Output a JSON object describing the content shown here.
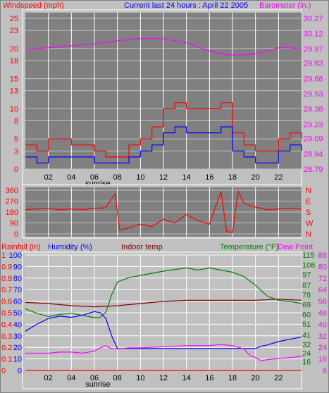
{
  "chart_data": [
    {
      "type": "line",
      "id": "wind-baro",
      "title": "Current last 24 hours : April 22 2005",
      "left_label": "Windspeed (mph)",
      "right_label": "Barometer (in.)",
      "left_ticks": [
        0,
        3,
        5,
        8,
        10,
        13,
        15,
        18,
        20,
        23,
        25
      ],
      "left_range": [
        0,
        25
      ],
      "right_ticks": [
        28.79,
        28.94,
        29.09,
        29.23,
        29.38,
        29.53,
        29.68,
        29.83,
        29.97,
        30.12,
        30.27
      ],
      "right_range": [
        28.79,
        30.27
      ],
      "x_ticks": [
        "02",
        "04",
        "06",
        "08",
        "10",
        "12",
        "14",
        "16",
        "18",
        "20",
        "22"
      ],
      "x_range": [
        0,
        24
      ],
      "annotation": "sunrise",
      "annotation_x": 6.3,
      "barometer": {
        "x": [
          0,
          2,
          4,
          6,
          8,
          10,
          12,
          14,
          16,
          17,
          18,
          19,
          20,
          21,
          22,
          23,
          24
        ],
        "y": [
          29.97,
          29.98,
          30.0,
          30.02,
          30.05,
          30.07,
          30.07,
          30.03,
          29.95,
          29.92,
          29.91,
          29.91,
          29.92,
          29.95,
          29.98,
          29.98,
          29.97
        ]
      },
      "wind_gust": {
        "x": [
          0,
          1,
          2,
          3,
          4,
          5,
          6,
          7,
          8,
          9,
          10,
          11,
          12,
          13,
          14,
          15,
          16,
          17,
          18,
          19,
          20,
          21,
          22,
          23,
          24
        ],
        "y": [
          4,
          3,
          5,
          5,
          4,
          4,
          3,
          2,
          2,
          4,
          5,
          7,
          10,
          11,
          10,
          10,
          10,
          11,
          6,
          4,
          3,
          3,
          5,
          6,
          5
        ]
      },
      "wind_avg": {
        "x": [
          0,
          1,
          2,
          3,
          4,
          5,
          6,
          7,
          8,
          9,
          10,
          11,
          12,
          13,
          14,
          15,
          16,
          17,
          18,
          19,
          20,
          21,
          22,
          23,
          24
        ],
        "y": [
          2,
          1,
          2,
          2,
          2,
          2,
          1,
          1,
          1,
          2,
          3,
          4,
          6,
          7,
          6,
          6,
          6,
          7,
          3,
          2,
          1,
          1,
          3,
          4,
          3
        ]
      }
    },
    {
      "type": "line",
      "id": "direction",
      "left_ticks": [
        0,
        90,
        180,
        270,
        360
      ],
      "left_range": [
        0,
        360
      ],
      "right_ticks": [
        "N",
        "W",
        "S",
        "E",
        "N"
      ],
      "x_range": [
        0,
        24
      ],
      "direction": {
        "x": [
          0,
          1,
          2,
          3,
          4,
          5,
          6,
          7,
          7.8,
          8.2,
          9,
          10,
          11,
          12,
          13,
          14,
          15,
          16,
          17,
          17.5,
          18,
          18.5,
          19,
          20,
          21,
          22,
          23,
          24
        ],
        "y": [
          200,
          205,
          210,
          200,
          205,
          200,
          210,
          215,
          330,
          30,
          50,
          80,
          60,
          120,
          90,
          160,
          110,
          80,
          350,
          20,
          10,
          350,
          250,
          220,
          200,
          205,
          210,
          205
        ]
      }
    },
    {
      "type": "line",
      "id": "temp-hum",
      "labels": {
        "rainfall": "Rainfall (in)",
        "humidity": "Humidity (%)",
        "indoor": "Indoor temp",
        "temperature": "Temperature (°F)",
        "dewpoint": "Dew Point"
      },
      "rain_ticks": [
        0,
        0.1,
        0.2,
        0.3,
        0.4,
        0.5,
        0.6,
        0.7,
        0.8,
        0.9,
        1
      ],
      "rain_tick_labels": [
        "0",
        "0.1",
        "0.2",
        "0.3",
        "0.4",
        "0.5",
        "0.6",
        "0.7",
        "0.8",
        "0.9",
        "1"
      ],
      "humidity_ticks": [
        0,
        10,
        20,
        30,
        40,
        50,
        60,
        70,
        80,
        90,
        100
      ],
      "humidity_tick_labels": [
        "0",
        "10",
        "20",
        "30",
        "40",
        "50",
        "60",
        "70",
        "80",
        "90",
        "100"
      ],
      "temp_ticks": [
        16,
        24,
        32,
        41,
        51,
        60,
        69,
        78,
        87,
        97,
        106,
        115
      ],
      "temp_tick_labels": [
        "16",
        "24",
        "32",
        "41",
        "51",
        "60",
        "69",
        "78",
        "87",
        "97",
        "106",
        "115"
      ],
      "dew_ticks": [
        8,
        16,
        24,
        32,
        40,
        48,
        56,
        64,
        72,
        80,
        88
      ],
      "dew_tick_labels": [
        "8",
        "16",
        "24",
        "32",
        "40",
        "48",
        "56",
        "64",
        "72",
        "80",
        "88"
      ],
      "x_ticks": [
        "02",
        "04",
        "06",
        "08",
        "10",
        "12",
        "14",
        "16",
        "18",
        "20",
        "22"
      ],
      "x_range": [
        0,
        24
      ],
      "annotation": "sunrise",
      "annotation_x": 6.3,
      "humidity": {
        "x": [
          0,
          1,
          2,
          3,
          4,
          5,
          6,
          6.5,
          7,
          7.5,
          8,
          10,
          14,
          18,
          19,
          20,
          20.5,
          21,
          22,
          23,
          24
        ],
        "y": [
          34,
          40,
          45,
          47,
          46,
          48,
          51,
          50,
          45,
          30,
          19,
          19,
          19,
          19,
          19,
          19,
          21,
          22,
          25,
          27,
          29
        ]
      },
      "temperature": {
        "x": [
          0,
          1,
          2,
          3,
          4,
          5,
          6,
          6.5,
          7,
          7.5,
          8,
          9,
          10,
          12,
          14,
          15,
          16,
          17,
          18,
          19,
          20,
          21,
          22,
          23,
          24
        ],
        "y": [
          65,
          61,
          58,
          60,
          61,
          59,
          57,
          57,
          62,
          78,
          90,
          94,
          96,
          100,
          103,
          101,
          103,
          101,
          99,
          95,
          87,
          77,
          73,
          72,
          70
        ]
      },
      "indoor_temp": {
        "x": [
          0,
          2,
          4,
          6,
          8,
          10,
          12,
          14,
          16,
          18,
          20,
          22,
          24
        ],
        "y": [
          71,
          70,
          68,
          67,
          68,
          70,
          72,
          73,
          73,
          73,
          73,
          74,
          73
        ]
      },
      "dewpoint": {
        "x": [
          0,
          1,
          2,
          3,
          4,
          5,
          6,
          6.5,
          7,
          7.5,
          8,
          9,
          10,
          12,
          14,
          15,
          16,
          17,
          18,
          19,
          19.5,
          20,
          20.5,
          21,
          22,
          23,
          24
        ],
        "y": [
          24,
          24,
          24,
          25,
          25,
          24,
          26,
          29,
          31,
          28,
          28,
          29,
          29,
          30,
          31,
          31,
          31,
          32,
          31,
          28,
          22,
          20,
          17,
          18,
          19,
          20,
          21
        ]
      },
      "rainfall": {
        "x": [
          0,
          24
        ],
        "y": [
          0,
          0
        ]
      }
    }
  ]
}
